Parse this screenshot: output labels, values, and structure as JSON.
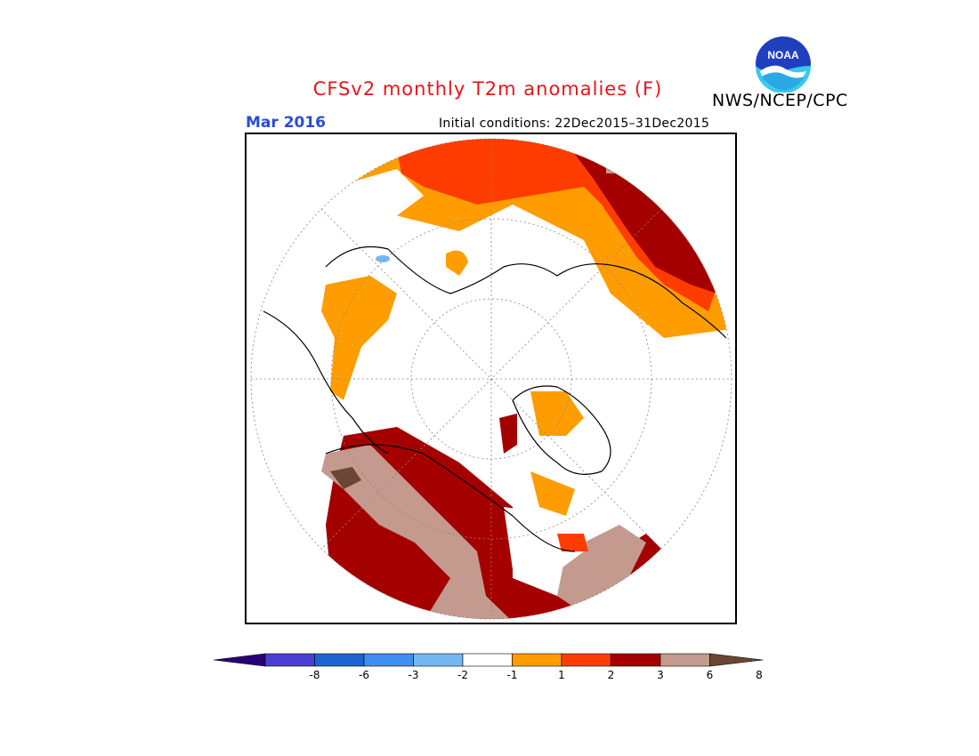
{
  "title": "CFSv2 monthly T2m anomalies (F)",
  "month": "Mar 2016",
  "initial_conditions": "Initial conditions: 22Dec2015–31Dec2015",
  "agency": "NWS/NCEP/CPC",
  "logo_text": "NOAA",
  "colorbar": {
    "labels": [
      "-8",
      "-6",
      "-3",
      "-2",
      "-1",
      "1",
      "2",
      "3",
      "6",
      "8"
    ],
    "colors": [
      "#2a007a",
      "#4b3fd1",
      "#1d64d2",
      "#3f8ef2",
      "#74b8f2",
      "#ffffff",
      "#ff9d00",
      "#ff3c00",
      "#a50000",
      "#c49a8e",
      "#6b4634"
    ]
  },
  "map_colors": {
    "above_1": "#ff9d00",
    "above_2": "#ff3c00",
    "above_3": "#a50000",
    "above_6": "#c49a8e",
    "above_8": "#6b4634",
    "below_1": "#74b8f2"
  }
}
